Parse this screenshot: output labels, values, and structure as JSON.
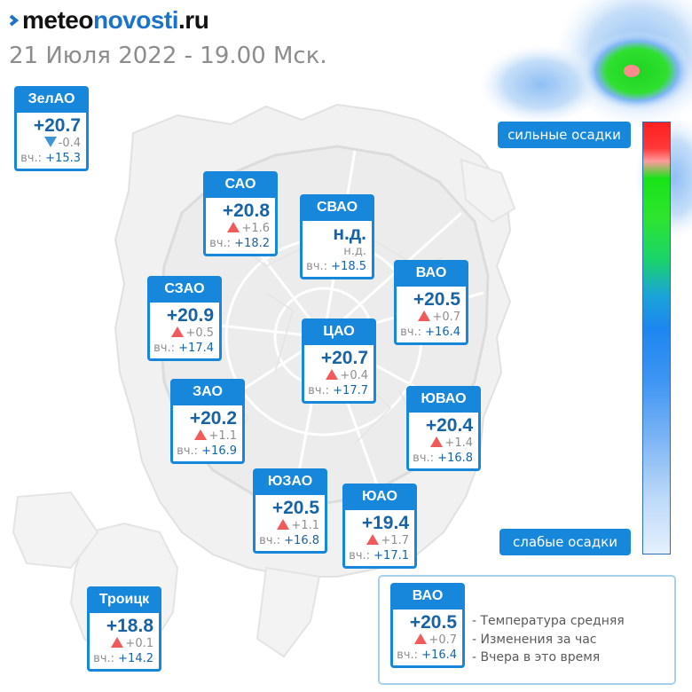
{
  "brand": {
    "part1": "meteo",
    "part2": "novosti",
    "part3": ".ru"
  },
  "date_line": "21 Июля 2022 - 19.00 Мск.",
  "scale": {
    "top_label": "сильные осадки",
    "bottom_label": "слабые осадки"
  },
  "yesterday_prefix": "вч.:",
  "districts": [
    {
      "name": "ЗелАО",
      "temp": "+20.7",
      "change": "-0.4",
      "dir": "down",
      "yesterday": "+15.3"
    },
    {
      "name": "САО",
      "temp": "+20.8",
      "change": "+1.6",
      "dir": "up",
      "yesterday": "+18.2"
    },
    {
      "name": "СВАО",
      "temp": "н.д.",
      "change": "н.д.",
      "dir": "none",
      "yesterday": "+18.5"
    },
    {
      "name": "ВАО",
      "temp": "+20.5",
      "change": "+0.7",
      "dir": "up",
      "yesterday": "+16.4"
    },
    {
      "name": "СЗАО",
      "temp": "+20.9",
      "change": "+0.5",
      "dir": "up",
      "yesterday": "+17.4"
    },
    {
      "name": "ЦАО",
      "temp": "+20.7",
      "change": "+0.4",
      "dir": "up",
      "yesterday": "+17.7"
    },
    {
      "name": "ЗАО",
      "temp": "+20.2",
      "change": "+1.1",
      "dir": "up",
      "yesterday": "+16.9"
    },
    {
      "name": "ЮВАО",
      "temp": "+20.4",
      "change": "+1.4",
      "dir": "up",
      "yesterday": "+16.8"
    },
    {
      "name": "ЮЗАО",
      "temp": "+20.5",
      "change": "+1.1",
      "dir": "up",
      "yesterday": "+16.8"
    },
    {
      "name": "ЮАО",
      "temp": "+19.4",
      "change": "+1.7",
      "dir": "up",
      "yesterday": "+17.1"
    },
    {
      "name": "Троицк",
      "temp": "+18.8",
      "change": "+0.1",
      "dir": "up",
      "yesterday": "+14.2"
    }
  ],
  "legend": {
    "sample": {
      "name": "ВАО",
      "temp": "+20.5",
      "change": "+0.7",
      "dir": "up",
      "yesterday": "+16.4"
    },
    "items": [
      "- Температура средняя",
      "- Изменения за час",
      "- Вчера в это время"
    ]
  },
  "colors": {
    "card_blue": "#1787dc",
    "temp_text": "#1763a6",
    "rise_triangle": "#f05a5a",
    "fall_triangle": "#3d94d6",
    "brand_accent": "#1a73c8"
  }
}
